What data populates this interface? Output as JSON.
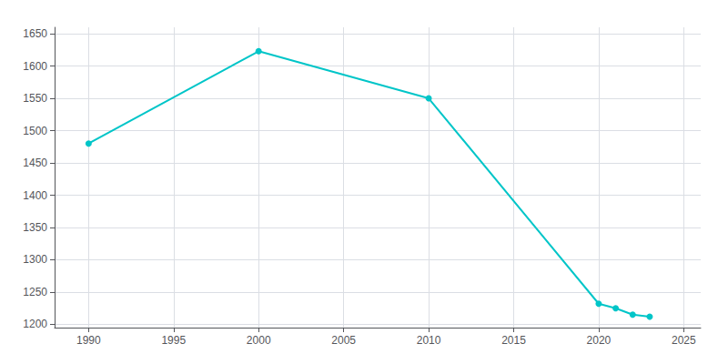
{
  "chart_data": {
    "type": "line",
    "x": [
      1990,
      2000,
      2010,
      2020,
      2021,
      2022,
      2023
    ],
    "values": [
      1480,
      1623,
      1550,
      1232,
      1225,
      1215,
      1212
    ],
    "color": "#00C5C8",
    "marker": "circle",
    "xlim": [
      1988,
      2026
    ],
    "ylim": [
      1195,
      1660
    ],
    "xticks": [
      1990,
      1995,
      2000,
      2005,
      2010,
      2015,
      2020,
      2025
    ],
    "yticks": [
      1200,
      1250,
      1300,
      1350,
      1400,
      1450,
      1500,
      1550,
      1600,
      1650
    ],
    "grid": true
  }
}
